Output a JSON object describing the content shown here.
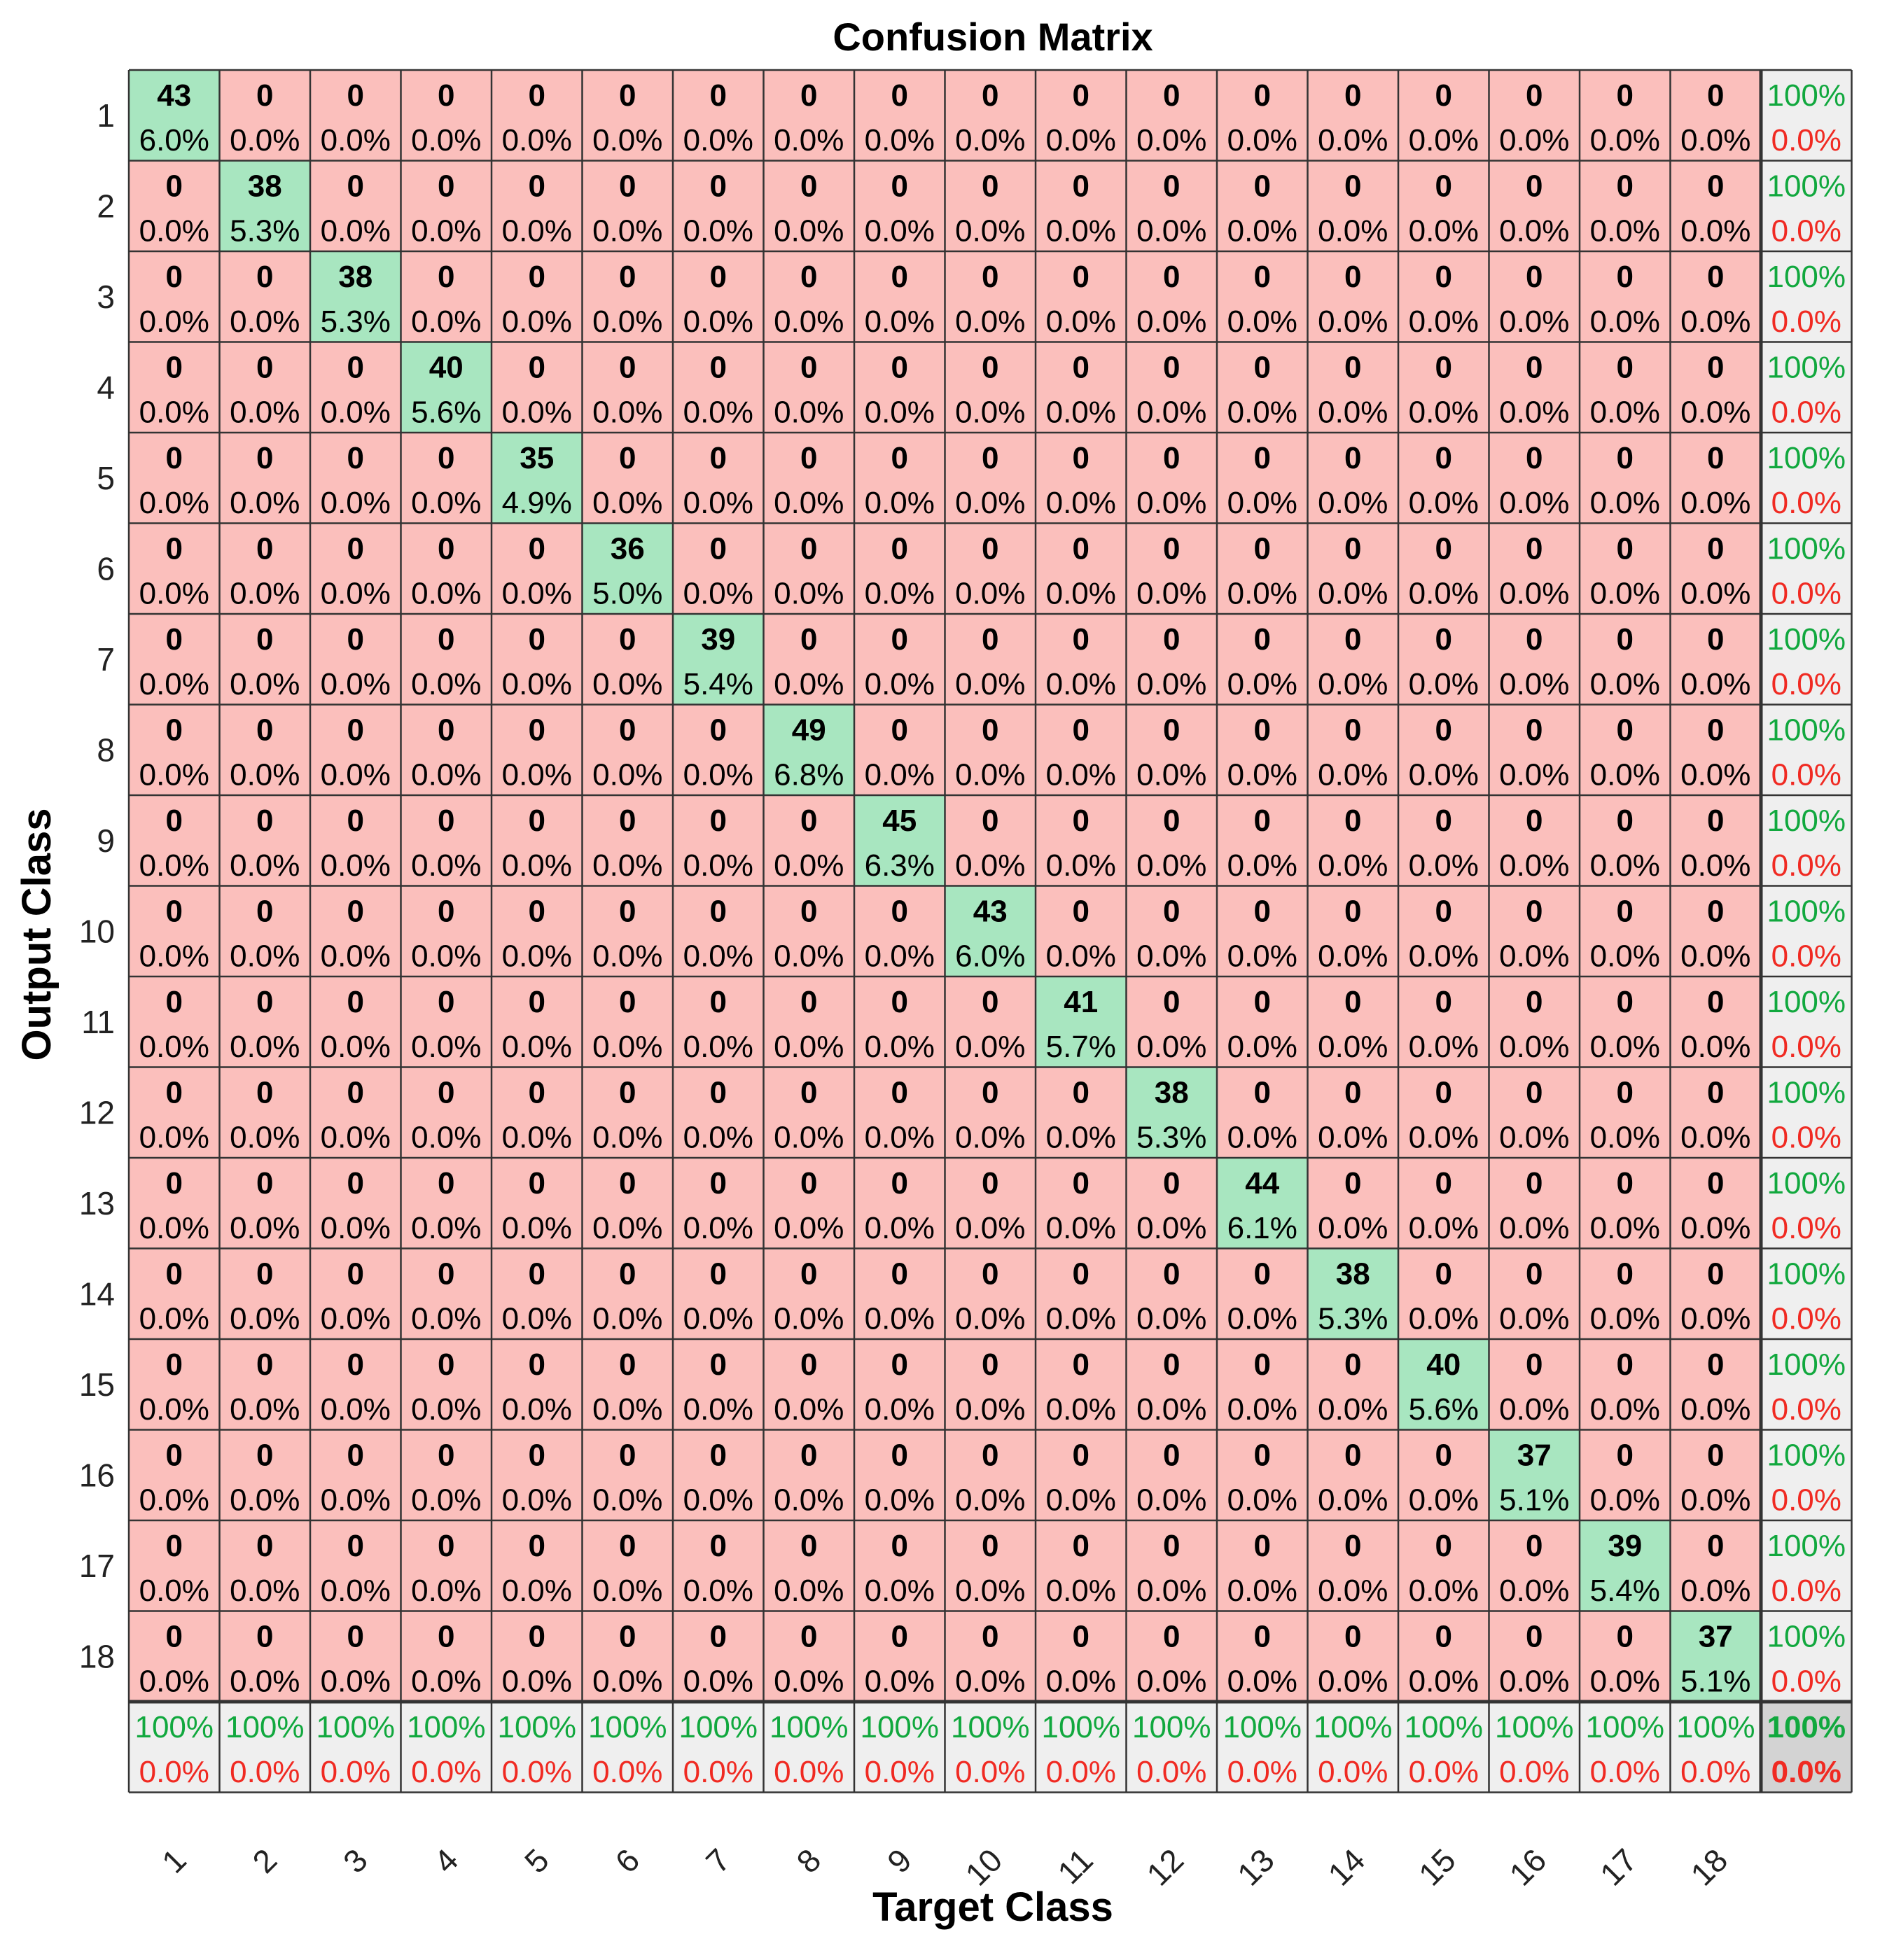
{
  "chart_data": {
    "type": "heatmap",
    "title": "Confusion Matrix",
    "xlabel": "Target Class",
    "ylabel": "Output Class",
    "classes": [
      "1",
      "2",
      "3",
      "4",
      "5",
      "6",
      "7",
      "8",
      "9",
      "10",
      "11",
      "12",
      "13",
      "14",
      "15",
      "16",
      "17",
      "18"
    ],
    "diagonal_counts": [
      43,
      38,
      38,
      40,
      35,
      36,
      39,
      49,
      45,
      43,
      41,
      38,
      44,
      38,
      40,
      37,
      39,
      37
    ],
    "diagonal_percents": [
      "6.0%",
      "5.3%",
      "5.3%",
      "5.6%",
      "4.9%",
      "5.0%",
      "5.4%",
      "6.8%",
      "6.3%",
      "6.0%",
      "5.7%",
      "5.3%",
      "6.1%",
      "5.3%",
      "5.6%",
      "5.1%",
      "5.4%",
      "5.1%"
    ],
    "off_diagonal_count": "0",
    "off_diagonal_percent": "0.0%",
    "row_summary": {
      "correct": "100%",
      "error": "0.0%"
    },
    "column_summary": {
      "correct": "100%",
      "error": "0.0%"
    },
    "overall": {
      "correct": "100%",
      "error": "0.0%"
    },
    "colors": {
      "diagonal": "#a8e6c0",
      "off_diagonal": "#fbbfbc",
      "summary": "#efefef",
      "corner": "#d3d3d3",
      "correct_text": "#11a83e",
      "error_text": "#f02a22",
      "grid": "#333333"
    }
  }
}
